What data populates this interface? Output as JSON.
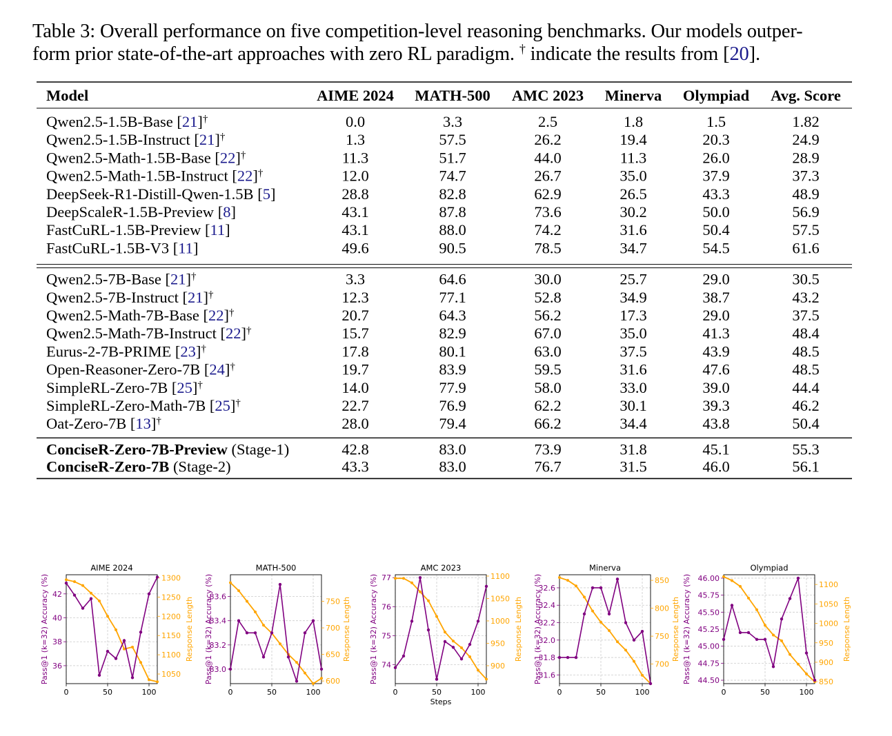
{
  "caption": {
    "prefix": "Table 3: Overall performance on five competition-level reasoning benchmarks. Our models outper-",
    "line2_a": "form prior state-of-the-art approaches with zero RL paradigm. ",
    "dagger": "†",
    "line2_b": " indicate the results from [",
    "ref": "20",
    "line2_c": "]."
  },
  "table": {
    "headers": [
      "Model",
      "AIME 2024",
      "MATH-500",
      "AMC 2023",
      "Minerva",
      "Olympiad",
      "Avg. Score"
    ],
    "groups": [
      [
        {
          "name": "Qwen2.5-1.5B-Base ",
          "ref": "21",
          "dagger": true,
          "values": [
            "0.0",
            "3.3",
            "2.5",
            "1.8",
            "1.5",
            "1.82"
          ]
        },
        {
          "name": "Qwen2.5-1.5B-Instruct ",
          "ref": "21",
          "dagger": true,
          "values": [
            "1.3",
            "57.5",
            "26.2",
            "19.4",
            "20.3",
            "24.9"
          ]
        },
        {
          "name": "Qwen2.5-Math-1.5B-Base ",
          "ref": "22",
          "dagger": true,
          "values": [
            "11.3",
            "51.7",
            "44.0",
            "11.3",
            "26.0",
            "28.9"
          ]
        },
        {
          "name": "Qwen2.5-Math-1.5B-Instruct ",
          "ref": "22",
          "dagger": true,
          "values": [
            "12.0",
            "74.7",
            "26.7",
            "35.0",
            "37.9",
            "37.3"
          ]
        },
        {
          "name": "DeepSeek-R1-Distill-Qwen-1.5B ",
          "ref": "5",
          "dagger": false,
          "values": [
            "28.8",
            "82.8",
            "62.9",
            "26.5",
            "43.3",
            "48.9"
          ]
        },
        {
          "name": "DeepScaleR-1.5B-Preview ",
          "ref": "8",
          "dagger": false,
          "values": [
            "43.1",
            "87.8",
            "73.6",
            "30.2",
            "50.0",
            "56.9"
          ]
        },
        {
          "name": "FastCuRL-1.5B-Preview ",
          "ref": "11",
          "dagger": false,
          "values": [
            "43.1",
            "88.0",
            "74.2",
            "31.6",
            "50.4",
            "57.5"
          ]
        },
        {
          "name": "FastCuRL-1.5B-V3 ",
          "ref": "11",
          "dagger": false,
          "values": [
            "49.6",
            "90.5",
            "78.5",
            "34.7",
            "54.5",
            "61.6"
          ]
        }
      ],
      [
        {
          "name": "Qwen2.5-7B-Base ",
          "ref": "21",
          "dagger": true,
          "values": [
            "3.3",
            "64.6",
            "30.0",
            "25.7",
            "29.0",
            "30.5"
          ]
        },
        {
          "name": "Qwen2.5-7B-Instruct ",
          "ref": "21",
          "dagger": true,
          "values": [
            "12.3",
            "77.1",
            "52.8",
            "34.9",
            "38.7",
            "43.2"
          ]
        },
        {
          "name": "Qwen2.5-Math-7B-Base ",
          "ref": "22",
          "dagger": true,
          "values": [
            "20.7",
            "64.3",
            "56.2",
            "17.3",
            "29.0",
            "37.5"
          ]
        },
        {
          "name": "Qwen2.5-Math-7B-Instruct ",
          "ref": "22",
          "dagger": true,
          "values": [
            "15.7",
            "82.9",
            "67.0",
            "35.0",
            "41.3",
            "48.4"
          ]
        },
        {
          "name": "Eurus-2-7B-PRIME ",
          "ref": "23",
          "dagger": true,
          "values": [
            "17.8",
            "80.1",
            "63.0",
            "37.5",
            "43.9",
            "48.5"
          ]
        },
        {
          "name": "Open-Reasoner-Zero-7B ",
          "ref": "24",
          "dagger": true,
          "values": [
            "19.7",
            "83.9",
            "59.5",
            "31.6",
            "47.6",
            "48.5"
          ]
        },
        {
          "name": "SimpleRL-Zero-7B ",
          "ref": "25",
          "dagger": true,
          "values": [
            "14.0",
            "77.9",
            "58.0",
            "33.0",
            "39.0",
            "44.4"
          ]
        },
        {
          "name": "SimpleRL-Zero-Math-7B ",
          "ref": "25",
          "dagger": true,
          "values": [
            "22.7",
            "76.9",
            "62.2",
            "30.1",
            "39.3",
            "46.2"
          ]
        },
        {
          "name": "Oat-Zero-7B ",
          "ref": "13",
          "dagger": true,
          "values": [
            "28.0",
            "79.4",
            "66.2",
            "34.4",
            "43.8",
            "50.4"
          ]
        }
      ],
      [
        {
          "bold": "ConciseR-Zero-7B-Preview",
          "suffix": " (Stage-1)",
          "values": [
            "42.8",
            "83.0",
            "73.9",
            "31.8",
            "45.1",
            "55.3"
          ]
        },
        {
          "bold": "ConciseR-Zero-7B",
          "suffix": " (Stage-2)",
          "values": [
            "43.3",
            "83.0",
            "76.7",
            "31.5",
            "46.0",
            "56.1"
          ]
        }
      ]
    ]
  },
  "colors": {
    "accuracy": "#800080",
    "length": "#FFA500",
    "ref": "#1a1a8c"
  },
  "chart_data": [
    {
      "type": "line",
      "title": "AIME 2024",
      "xlabel": "",
      "ylabel": "Pass@1 (k=32) Accuracy (%)",
      "y2label": "Response Length",
      "xticks": [
        0,
        50,
        100
      ],
      "xlim": [
        0,
        110
      ],
      "ylim": [
        34.5,
        43.6
      ],
      "yticks": [
        36,
        38,
        40,
        42
      ],
      "ytick_labels": [
        "36",
        "38",
        "40",
        "42"
      ],
      "y2lim": [
        1025,
        1308
      ],
      "y2ticks": [
        1050,
        1100,
        1150,
        1200,
        1250,
        1300
      ],
      "y2tick_labels": [
        "1050",
        "1100",
        "1150",
        "1200",
        "1250",
        "1300"
      ],
      "x": [
        0,
        10,
        20,
        30,
        40,
        50,
        60,
        70,
        80,
        90,
        100,
        110
      ],
      "series": [
        {
          "axis": "left",
          "values": [
            42.9,
            41.9,
            40.8,
            41.6,
            35.2,
            37.2,
            36.6,
            38.1,
            35.0,
            38.8,
            42.0,
            43.4
          ]
        },
        {
          "axis": "right",
          "values": [
            1295,
            1290,
            1280,
            1260,
            1240,
            1200,
            1165,
            1115,
            1120,
            1080,
            1035,
            1030
          ]
        }
      ]
    },
    {
      "type": "line",
      "title": "MATH-500",
      "xlabel": "",
      "ylabel": "Pass@1 (k=32) Accuracy (%)",
      "y2label": "Response Length",
      "xticks": [
        0,
        50,
        100
      ],
      "xlim": [
        0,
        110
      ],
      "ylim": [
        82.88,
        83.78
      ],
      "yticks": [
        83.0,
        83.2,
        83.4,
        83.6
      ],
      "ytick_labels": [
        "83.0",
        "83.2",
        "83.4",
        "83.6"
      ],
      "y2lim": [
        595,
        800
      ],
      "y2ticks": [
        600,
        650,
        700,
        750
      ],
      "y2tick_labels": [
        "600",
        "650",
        "700",
        "750"
      ],
      "x": [
        0,
        10,
        20,
        30,
        40,
        50,
        60,
        70,
        80,
        90,
        100,
        110
      ],
      "series": [
        {
          "axis": "left",
          "values": [
            83.0,
            83.4,
            83.3,
            83.3,
            83.1,
            83.3,
            83.7,
            83.1,
            82.9,
            83.3,
            83.4,
            83.0
          ]
        },
        {
          "axis": "right",
          "values": [
            785,
            770,
            750,
            730,
            705,
            690,
            670,
            650,
            635,
            615,
            595,
            605
          ]
        }
      ]
    },
    {
      "type": "line",
      "title": "AMC 2023",
      "xlabel": "Steps",
      "ylabel": "Pass@1 (k=32) Accuracy (%)",
      "y2label": "Response Length",
      "xticks": [
        0,
        50,
        100
      ],
      "xlim": [
        0,
        110
      ],
      "ylim": [
        73.35,
        77.1
      ],
      "yticks": [
        74,
        75,
        76,
        77
      ],
      "ytick_labels": [
        "74",
        "75",
        "76",
        "77"
      ],
      "y2lim": [
        860,
        1103
      ],
      "y2ticks": [
        900,
        950,
        1000,
        1050,
        1100
      ],
      "y2tick_labels": [
        "900",
        "950",
        "1000",
        "1050",
        "1100"
      ],
      "x": [
        0,
        10,
        20,
        30,
        40,
        50,
        60,
        70,
        80,
        90,
        100,
        110
      ],
      "series": [
        {
          "axis": "left",
          "values": [
            73.9,
            74.3,
            75.5,
            77.0,
            75.2,
            73.5,
            74.8,
            74.6,
            74.2,
            74.7,
            75.5,
            76.7
          ]
        },
        {
          "axis": "right",
          "values": [
            1095,
            1095,
            1085,
            1065,
            1045,
            1010,
            975,
            955,
            940,
            920,
            890,
            870
          ]
        }
      ]
    },
    {
      "type": "line",
      "title": "Minerva",
      "xlabel": "",
      "ylabel": "Pass@1 (k=32) Accuracy (%)",
      "y2label": "Response Length",
      "xticks": [
        0,
        50,
        100
      ],
      "xlim": [
        0,
        110
      ],
      "ylim": [
        31.5,
        32.75
      ],
      "yticks": [
        31.6,
        31.8,
        32.0,
        32.2,
        32.4,
        32.6
      ],
      "ytick_labels": [
        "31.6",
        "31.8",
        "32.0",
        "32.2",
        "32.4",
        "32.6"
      ],
      "y2lim": [
        665,
        860
      ],
      "y2ticks": [
        700,
        750,
        800,
        850
      ],
      "y2tick_labels": [
        "700",
        "750",
        "800",
        "850"
      ],
      "x": [
        0,
        10,
        20,
        30,
        40,
        50,
        60,
        70,
        80,
        90,
        100,
        110
      ],
      "series": [
        {
          "axis": "left",
          "values": [
            31.8,
            31.8,
            31.8,
            32.3,
            32.6,
            32.6,
            32.3,
            32.7,
            32.2,
            32.0,
            32.1,
            31.5
          ]
        },
        {
          "axis": "right",
          "values": [
            855,
            850,
            840,
            820,
            795,
            775,
            760,
            740,
            725,
            705,
            680,
            665
          ]
        }
      ]
    },
    {
      "type": "line",
      "title": "Olympiad",
      "xlabel": "",
      "ylabel": "Pass@1 (k=32) Accuracy (%)",
      "y2label": "Response Length",
      "xticks": [
        0,
        50,
        100
      ],
      "xlim": [
        0,
        110
      ],
      "ylim": [
        44.45,
        46.05
      ],
      "yticks": [
        44.5,
        44.75,
        45.0,
        45.25,
        45.5,
        45.75,
        46.0
      ],
      "ytick_labels": [
        "44.50",
        "44.75",
        "45.00",
        "45.25",
        "45.50",
        "45.75",
        "46.00"
      ],
      "y2lim": [
        845,
        1125
      ],
      "y2ticks": [
        850,
        900,
        950,
        1000,
        1050,
        1100
      ],
      "y2tick_labels": [
        "850",
        "900",
        "950",
        "1000",
        "1050",
        "1100"
      ],
      "x": [
        0,
        10,
        20,
        30,
        40,
        50,
        60,
        70,
        80,
        90,
        100,
        110
      ],
      "series": [
        {
          "axis": "left",
          "values": [
            45.1,
            45.6,
            45.2,
            45.2,
            45.1,
            45.1,
            44.7,
            45.4,
            45.7,
            46.0,
            44.9,
            44.5
          ]
        },
        {
          "axis": "right",
          "values": [
            1120,
            1110,
            1095,
            1065,
            1035,
            995,
            970,
            955,
            920,
            895,
            870,
            850
          ]
        }
      ]
    }
  ]
}
